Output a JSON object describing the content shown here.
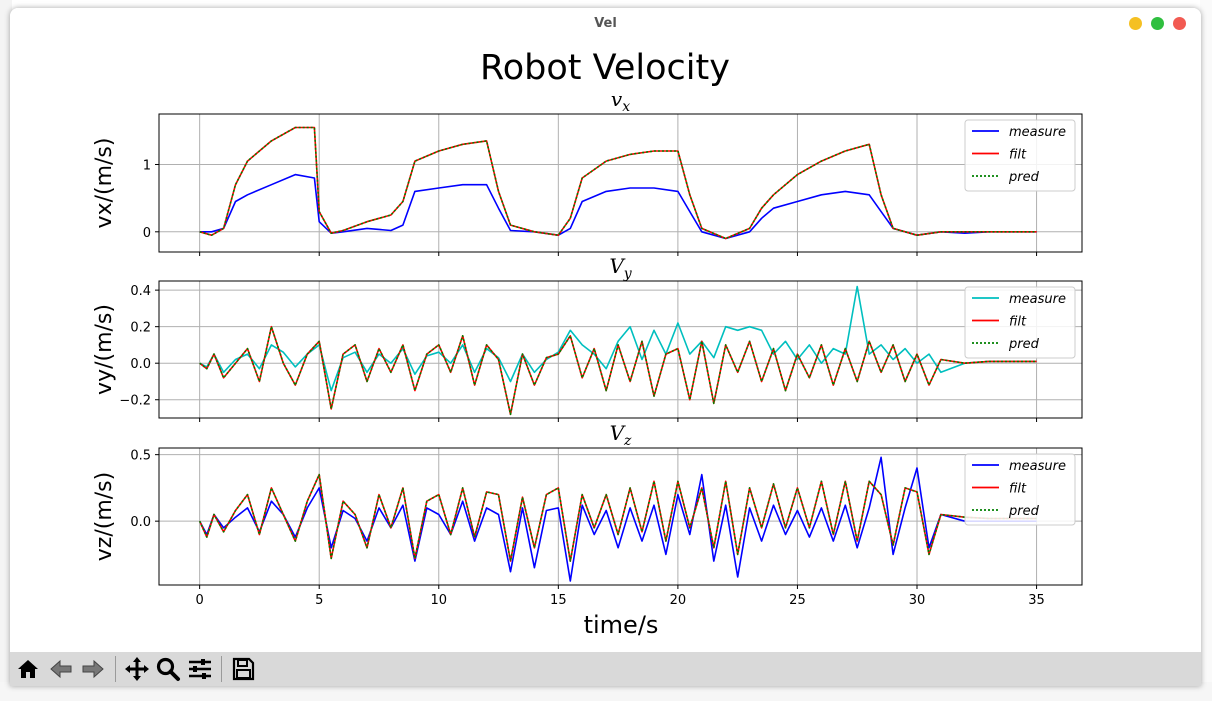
{
  "window": {
    "title": "Vel"
  },
  "figure": {
    "suptitle": "Robot Velocity",
    "xlabel": "time/s",
    "xticks": [
      "0",
      "5",
      "10",
      "15",
      "20",
      "25",
      "30",
      "35"
    ]
  },
  "colors": {
    "measure_blue": "#0000ff",
    "measure_cyan": "#00bfbf",
    "filt": "#ff0000",
    "pred": "#008000",
    "grid": "#b0b0b0"
  },
  "toolbar": {
    "buttons": [
      {
        "name": "home-icon"
      },
      {
        "name": "back-arrow-icon"
      },
      {
        "name": "forward-arrow-icon"
      },
      {
        "name": "pan-icon"
      },
      {
        "name": "zoom-icon"
      },
      {
        "name": "configure-subplots-icon"
      },
      {
        "name": "save-icon"
      }
    ]
  },
  "chart_data": [
    {
      "type": "line",
      "title": "v_x",
      "ylabel": "vx/(m/s)",
      "xlim": [
        -1.7,
        36.9
      ],
      "ylim": [
        -0.3,
        1.75
      ],
      "yticks": [
        "0",
        "1"
      ],
      "legend": [
        "measure",
        "filt",
        "pred"
      ],
      "legend_placement": "upper right",
      "grid": true,
      "x": [
        0,
        0.5,
        1,
        1.5,
        2,
        3,
        4,
        4.8,
        5,
        5.5,
        6,
        7,
        8,
        8.5,
        9,
        10,
        11,
        12,
        12.5,
        13,
        14,
        15,
        15.5,
        16,
        17,
        18,
        19,
        20,
        20.5,
        21,
        22,
        23,
        23.5,
        24,
        25,
        26,
        27,
        28,
        28.5,
        29,
        30,
        31,
        32,
        33,
        35
      ],
      "series": [
        {
          "name": "measure",
          "values": [
            0,
            0,
            0.05,
            0.45,
            0.55,
            0.7,
            0.85,
            0.8,
            0.15,
            -0.02,
            0,
            0.05,
            0.02,
            0.1,
            0.6,
            0.65,
            0.7,
            0.7,
            0.35,
            0.02,
            0,
            -0.05,
            0.05,
            0.45,
            0.6,
            0.65,
            0.65,
            0.6,
            0.3,
            0,
            -0.1,
            0,
            0.2,
            0.35,
            0.45,
            0.55,
            0.6,
            0.55,
            0.3,
            0.05,
            -0.05,
            0,
            -0.02,
            0,
            0
          ]
        },
        {
          "name": "filt",
          "values": [
            0,
            -0.05,
            0.05,
            0.7,
            1.05,
            1.35,
            1.55,
            1.55,
            0.3,
            -0.02,
            0.02,
            0.15,
            0.25,
            0.45,
            1.05,
            1.2,
            1.3,
            1.35,
            0.6,
            0.1,
            0,
            -0.05,
            0.2,
            0.8,
            1.05,
            1.15,
            1.2,
            1.2,
            0.55,
            0.05,
            -0.1,
            0.05,
            0.35,
            0.55,
            0.85,
            1.05,
            1.2,
            1.3,
            0.55,
            0.05,
            -0.05,
            0,
            0,
            0,
            0
          ]
        },
        {
          "name": "pred",
          "values": [
            0,
            -0.05,
            0.05,
            0.7,
            1.05,
            1.35,
            1.55,
            1.55,
            0.3,
            -0.02,
            0.02,
            0.15,
            0.25,
            0.45,
            1.05,
            1.2,
            1.3,
            1.35,
            0.6,
            0.1,
            0,
            -0.05,
            0.2,
            0.8,
            1.05,
            1.15,
            1.2,
            1.2,
            0.55,
            0.05,
            -0.1,
            0.05,
            0.35,
            0.55,
            0.85,
            1.05,
            1.2,
            1.3,
            0.55,
            0.05,
            -0.05,
            0,
            0,
            0,
            0
          ]
        }
      ]
    },
    {
      "type": "line",
      "title": "V_y",
      "ylabel": "vy/(m/s)",
      "xlim": [
        -1.7,
        36.9
      ],
      "ylim": [
        -0.3,
        0.45
      ],
      "yticks": [
        "0.4",
        "0.2",
        "0.0",
        "−0.2"
      ],
      "legend": [
        "measure",
        "filt",
        "pred"
      ],
      "legend_placement": "upper right",
      "grid": true,
      "x": [
        0,
        0.3,
        0.6,
        1,
        1.5,
        2,
        2.5,
        3,
        3.5,
        4,
        4.5,
        5,
        5.5,
        6,
        6.5,
        7,
        7.5,
        8,
        8.5,
        9,
        9.5,
        10,
        10.5,
        11,
        11.5,
        12,
        12.5,
        13,
        13.5,
        14,
        14.5,
        15,
        15.5,
        16,
        16.5,
        17,
        17.5,
        18,
        18.5,
        19,
        19.5,
        20,
        20.5,
        21,
        21.5,
        22,
        22.5,
        23,
        23.5,
        24,
        24.5,
        25,
        25.5,
        26,
        26.5,
        27,
        27.5,
        28,
        28.5,
        29,
        29.5,
        30,
        30.5,
        31,
        32,
        33,
        35
      ],
      "series": [
        {
          "name": "measure",
          "values": [
            0,
            -0.02,
            0.05,
            -0.05,
            0.02,
            0.05,
            -0.03,
            0.1,
            0.06,
            -0.02,
            0.05,
            0.1,
            -0.15,
            0.03,
            0.06,
            -0.05,
            0.05,
            0.0,
            0.08,
            -0.06,
            0.04,
            0.06,
            0.0,
            0.1,
            -0.05,
            0.08,
            0.03,
            -0.1,
            0.05,
            -0.05,
            0.02,
            0.06,
            0.18,
            0.1,
            0.05,
            -0.03,
            0.12,
            0.2,
            0.02,
            0.18,
            0.05,
            0.22,
            0.05,
            0.12,
            0.03,
            0.2,
            0.18,
            0.2,
            0.18,
            0.05,
            0.12,
            0.02,
            0.1,
            0.0,
            0.08,
            0.05,
            0.42,
            0.05,
            0.1,
            0.02,
            0.08,
            0.0,
            0.05,
            -0.05,
            0.0,
            0.01,
            0.01
          ]
        },
        {
          "name": "filt",
          "values": [
            0,
            -0.03,
            0.05,
            -0.08,
            0.0,
            0.08,
            -0.1,
            0.2,
            0.0,
            -0.12,
            0.05,
            0.12,
            -0.25,
            0.05,
            0.1,
            -0.1,
            0.08,
            -0.05,
            0.1,
            -0.15,
            0.05,
            0.1,
            -0.05,
            0.15,
            -0.12,
            0.1,
            0.02,
            -0.28,
            0.05,
            -0.12,
            0.03,
            0.05,
            0.15,
            -0.08,
            0.08,
            -0.15,
            0.1,
            -0.1,
            0.12,
            -0.18,
            0.05,
            0.08,
            -0.2,
            0.12,
            -0.22,
            0.1,
            -0.05,
            0.12,
            -0.1,
            0.08,
            -0.15,
            0.05,
            -0.08,
            0.1,
            -0.12,
            0.08,
            -0.1,
            0.12,
            -0.05,
            0.1,
            -0.1,
            0.05,
            -0.12,
            0.02,
            0.0,
            0.01,
            0.01
          ]
        },
        {
          "name": "pred",
          "values": [
            0,
            -0.03,
            0.05,
            -0.08,
            0.0,
            0.08,
            -0.1,
            0.2,
            0.0,
            -0.12,
            0.05,
            0.12,
            -0.25,
            0.05,
            0.1,
            -0.1,
            0.08,
            -0.05,
            0.1,
            -0.15,
            0.05,
            0.1,
            -0.05,
            0.15,
            -0.12,
            0.1,
            0.02,
            -0.28,
            0.05,
            -0.12,
            0.03,
            0.05,
            0.15,
            -0.08,
            0.08,
            -0.15,
            0.1,
            -0.1,
            0.12,
            -0.18,
            0.05,
            0.08,
            -0.2,
            0.12,
            -0.22,
            0.1,
            -0.05,
            0.12,
            -0.1,
            0.08,
            -0.15,
            0.05,
            -0.08,
            0.1,
            -0.12,
            0.08,
            -0.1,
            0.12,
            -0.05,
            0.1,
            -0.1,
            0.05,
            -0.12,
            0.02,
            0.0,
            0.01,
            0.01
          ]
        }
      ]
    },
    {
      "type": "line",
      "title": "V_z",
      "ylabel": "vz/(m/s)",
      "xlim": [
        -1.7,
        36.9
      ],
      "ylim": [
        -0.48,
        0.55
      ],
      "yticks": [
        "0.5",
        "0.0"
      ],
      "legend": [
        "measure",
        "filt",
        "pred"
      ],
      "legend_placement": "upper right",
      "grid": true,
      "x": [
        0,
        0.3,
        0.6,
        1,
        1.5,
        2,
        2.5,
        3,
        3.5,
        4,
        4.5,
        5,
        5.5,
        6,
        6.5,
        7,
        7.5,
        8,
        8.5,
        9,
        9.5,
        10,
        10.5,
        11,
        11.5,
        12,
        12.5,
        13,
        13.5,
        14,
        14.5,
        15,
        15.5,
        16,
        16.5,
        17,
        17.5,
        18,
        18.5,
        19,
        19.5,
        20,
        20.5,
        21,
        21.5,
        22,
        22.5,
        23,
        23.5,
        24,
        24.5,
        25,
        25.5,
        26,
        26.5,
        27,
        27.5,
        28,
        28.5,
        29,
        29.5,
        30,
        30.5,
        31,
        32,
        33,
        35
      ],
      "series": [
        {
          "name": "measure",
          "values": [
            0,
            -0.1,
            0.05,
            -0.05,
            0.03,
            0.1,
            -0.08,
            0.15,
            0.05,
            -0.12,
            0.1,
            0.25,
            -0.2,
            0.08,
            0.02,
            -0.15,
            0.1,
            -0.05,
            0.12,
            -0.3,
            0.1,
            0.05,
            -0.1,
            0.15,
            -0.15,
            0.1,
            0.05,
            -0.38,
            0.1,
            -0.35,
            0.08,
            0.1,
            -0.45,
            0.12,
            -0.1,
            0.08,
            -0.2,
            0.1,
            -0.15,
            0.12,
            -0.25,
            0.2,
            -0.1,
            0.35,
            -0.3,
            0.12,
            -0.42,
            0.1,
            -0.15,
            0.12,
            -0.1,
            0.08,
            -0.12,
            0.1,
            -0.15,
            0.12,
            -0.2,
            0.1,
            0.48,
            -0.25,
            0.1,
            0.4,
            -0.2,
            0.05,
            0.0,
            0.0,
            0.0
          ]
        },
        {
          "name": "filt",
          "values": [
            0,
            -0.12,
            0.05,
            -0.08,
            0.08,
            0.2,
            -0.1,
            0.25,
            0.05,
            -0.15,
            0.15,
            0.35,
            -0.28,
            0.15,
            0.05,
            -0.2,
            0.2,
            -0.05,
            0.25,
            -0.28,
            0.15,
            0.2,
            -0.1,
            0.25,
            -0.12,
            0.22,
            0.2,
            -0.3,
            0.18,
            -0.2,
            0.2,
            0.25,
            -0.3,
            0.2,
            -0.05,
            0.2,
            -0.1,
            0.25,
            -0.08,
            0.3,
            -0.15,
            0.3,
            -0.05,
            0.25,
            -0.2,
            0.3,
            -0.25,
            0.25,
            -0.05,
            0.28,
            -0.05,
            0.25,
            -0.05,
            0.3,
            -0.1,
            0.3,
            -0.15,
            0.3,
            0.2,
            -0.18,
            0.25,
            0.22,
            -0.25,
            0.05,
            0.03,
            0.02,
            0.02
          ]
        },
        {
          "name": "pred",
          "values": [
            0,
            -0.12,
            0.05,
            -0.08,
            0.08,
            0.2,
            -0.1,
            0.25,
            0.05,
            -0.15,
            0.15,
            0.35,
            -0.28,
            0.15,
            0.05,
            -0.2,
            0.2,
            -0.05,
            0.25,
            -0.28,
            0.15,
            0.2,
            -0.1,
            0.25,
            -0.12,
            0.22,
            0.2,
            -0.3,
            0.18,
            -0.2,
            0.2,
            0.25,
            -0.3,
            0.2,
            -0.05,
            0.2,
            -0.1,
            0.25,
            -0.08,
            0.3,
            -0.15,
            0.3,
            -0.05,
            0.25,
            -0.2,
            0.3,
            -0.25,
            0.25,
            -0.05,
            0.28,
            -0.05,
            0.25,
            -0.05,
            0.3,
            -0.1,
            0.3,
            -0.15,
            0.3,
            0.2,
            -0.18,
            0.25,
            0.22,
            -0.25,
            0.05,
            0.03,
            0.02,
            0.02
          ]
        }
      ]
    }
  ]
}
